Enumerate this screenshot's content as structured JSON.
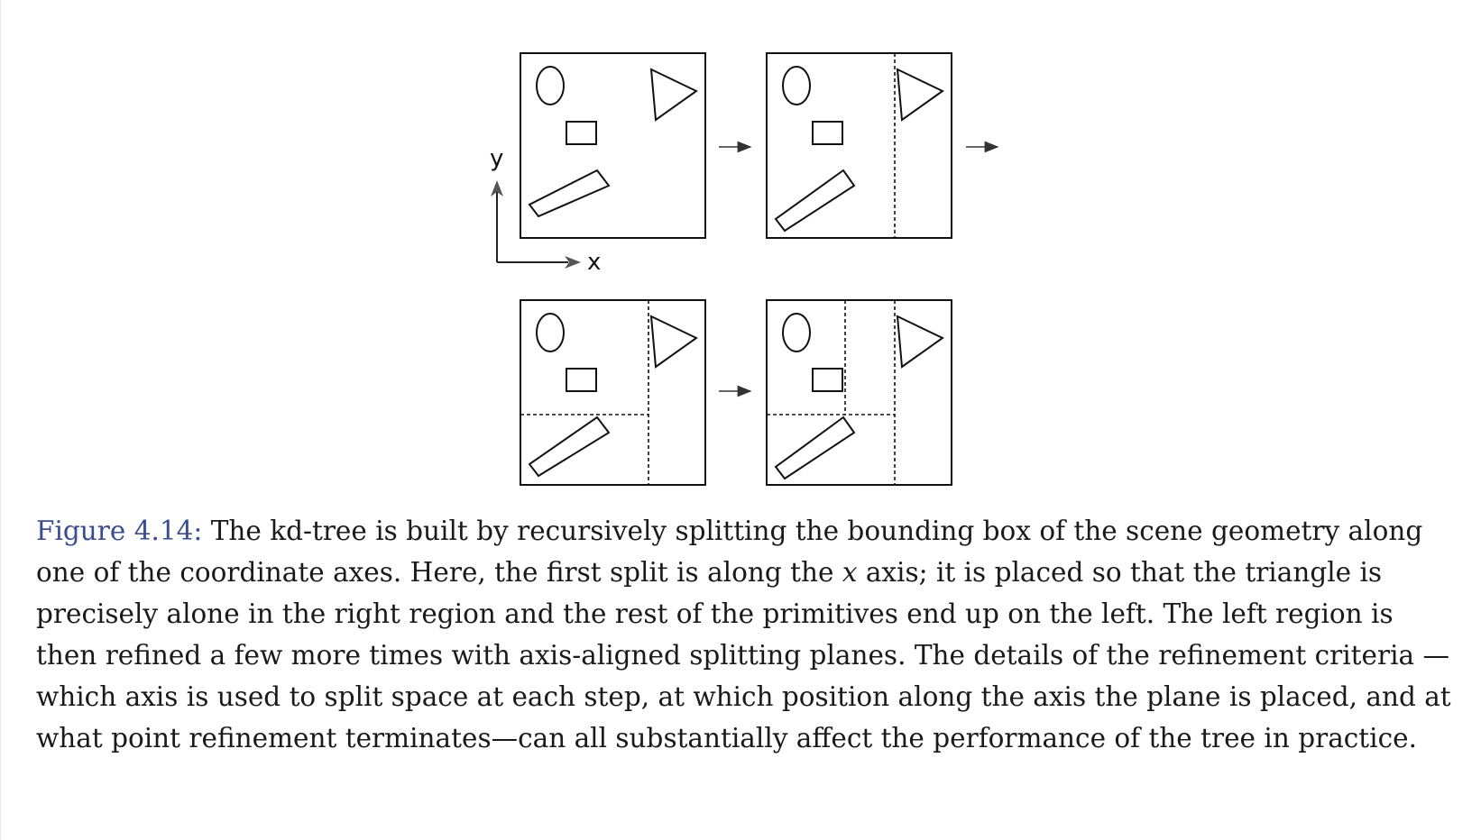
{
  "diagram": {
    "axis_labels": {
      "x": "x",
      "y": "y"
    },
    "panels": [
      {
        "id": "panel-1",
        "splits": "none"
      },
      {
        "id": "panel-2",
        "splits": "vertical split isolating triangle"
      },
      {
        "id": "panel-3",
        "splits": "vertical split plus horizontal split on left region"
      },
      {
        "id": "panel-4",
        "splits": "vertical splits plus horizontal split on left region"
      }
    ],
    "shapes": [
      "ellipse",
      "small-rectangle",
      "triangle",
      "rotated-rectangle"
    ]
  },
  "caption": {
    "label": "Figure 4.14:",
    "text_1": " The kd-tree is built by recursively splitting the bounding box of the scene geometry along one of the coordinate axes. Here, the first split is along the ",
    "math_x": "x",
    "text_2": " axis; it is placed so that the triangle is precisely alone in the right region and the rest of the primitives end up on the left. The left region is then refined a few more times with axis-aligned splitting planes. The details of the refinement criteria —which axis is used to split space at each step, at which position along the axis the plane is placed, and at what point refinement terminates—can all substantially affect the performance of the tree in practice."
  }
}
